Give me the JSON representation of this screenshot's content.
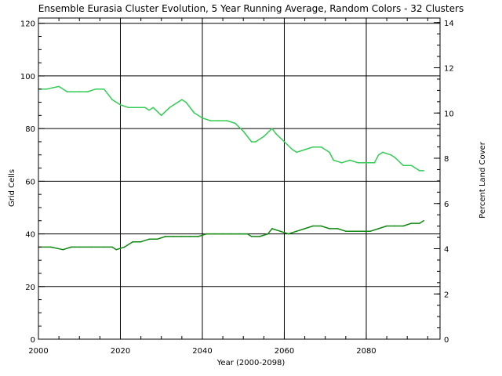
{
  "chart_data": {
    "type": "line",
    "title": "Ensemble Eurasia Cluster Evolution, 5 Year Running Average, Random Colors - 32 Clusters",
    "xlabel": "Year (2000-2098)",
    "ylabel": "Grid Cells",
    "y2label": "Percent Land Cover",
    "xlim": [
      2000,
      2098
    ],
    "ylim": [
      0,
      122
    ],
    "y2lim": [
      0,
      14.2
    ],
    "xticks": [
      2000,
      2020,
      2040,
      2060,
      2080
    ],
    "yticks": [
      0,
      20,
      40,
      60,
      80,
      100,
      120
    ],
    "y2ticks": [
      0,
      2,
      4,
      6,
      8,
      10,
      12,
      14
    ],
    "grid": true,
    "series": [
      {
        "color": "#33cc55",
        "x": [
          2000,
          2002,
          2005,
          2007,
          2010,
          2012,
          2014,
          2016,
          2018,
          2020,
          2022,
          2024,
          2026,
          2027,
          2028,
          2030,
          2032,
          2033,
          2035,
          2036,
          2038,
          2040,
          2042,
          2044,
          2046,
          2048,
          2050,
          2052,
          2053,
          2055,
          2057,
          2058,
          2060,
          2062,
          2063,
          2065,
          2067,
          2069,
          2071,
          2072,
          2074,
          2076,
          2078,
          2080,
          2082,
          2083,
          2084,
          2086,
          2087,
          2089,
          2091,
          2093,
          2094
        ],
        "values": [
          95,
          95,
          96,
          94,
          94,
          94,
          95,
          95,
          91,
          89,
          88,
          88,
          88,
          87,
          88,
          85,
          88,
          89,
          91,
          90,
          86,
          84,
          83,
          83,
          83,
          82,
          79,
          75,
          75,
          77,
          80,
          78,
          75,
          72,
          71,
          72,
          73,
          73,
          71,
          68,
          67,
          68,
          67,
          67,
          67,
          70,
          71,
          70,
          69,
          66,
          66,
          64,
          64
        ]
      },
      {
        "color": "#118811",
        "x": [
          2000,
          2003,
          2006,
          2008,
          2010,
          2013,
          2016,
          2018,
          2019,
          2021,
          2023,
          2025,
          2027,
          2029,
          2031,
          2033,
          2035,
          2037,
          2039,
          2041,
          2043,
          2045,
          2047,
          2049,
          2051,
          2052,
          2054,
          2056,
          2057,
          2059,
          2061,
          2063,
          2065,
          2067,
          2069,
          2071,
          2073,
          2075,
          2077,
          2079,
          2081,
          2083,
          2085,
          2087,
          2089,
          2091,
          2093,
          2094
        ],
        "values": [
          35,
          35,
          34,
          35,
          35,
          35,
          35,
          35,
          34,
          35,
          37,
          37,
          38,
          38,
          39,
          39,
          39,
          39,
          39,
          40,
          40,
          40,
          40,
          40,
          40,
          39,
          39,
          40,
          42,
          41,
          40,
          41,
          42,
          43,
          43,
          42,
          42,
          41,
          41,
          41,
          41,
          42,
          43,
          43,
          43,
          44,
          44,
          45
        ]
      }
    ]
  }
}
